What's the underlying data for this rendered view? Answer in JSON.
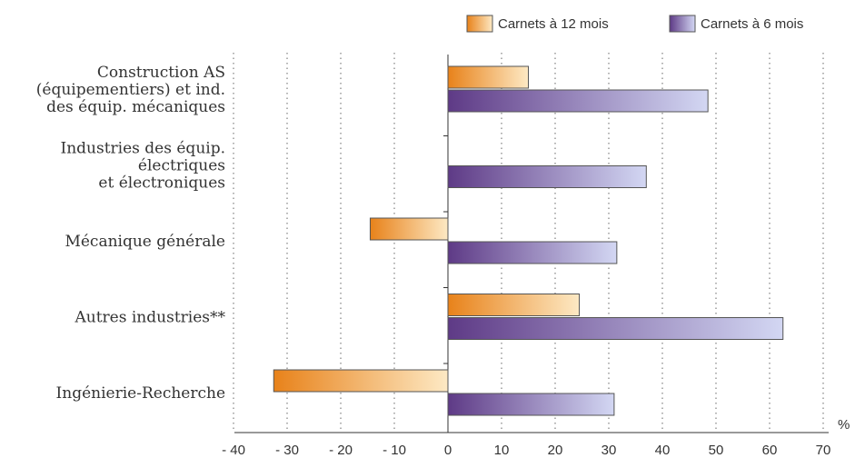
{
  "chart_data": {
    "type": "bar",
    "orientation": "horizontal",
    "title": "",
    "xlabel": "",
    "ylabel": "",
    "unit_label": "%",
    "categories": [
      [
        "Construction AS",
        "(équipementiers) et ind.",
        "des équip. mécaniques"
      ],
      [
        "Industries des équip.",
        "électriques",
        "et électroniques"
      ],
      [
        "Mécanique générale"
      ],
      [
        "Autres industries**"
      ],
      [
        "Ingénierie-Recherche"
      ]
    ],
    "series": [
      {
        "name": "Carnets à 12 mois",
        "values": [
          15,
          null,
          -14.5,
          24.5,
          -32.5
        ],
        "color_start": "#e8821a",
        "color_end": "#fde9c4"
      },
      {
        "name": "Carnets à 6 mois",
        "values": [
          48.5,
          37,
          31.5,
          62.5,
          31
        ],
        "color_start": "#5e3a86",
        "color_end": "#d3d7f3"
      }
    ],
    "xlim": [
      -40,
      70
    ],
    "xticks": [
      -40,
      -30,
      -20,
      -10,
      0,
      10,
      20,
      30,
      40,
      50,
      60,
      70
    ],
    "xtick_labels": [
      "- 40",
      "- 30",
      "- 20",
      "- 10",
      "0",
      "10",
      "20",
      "30",
      "40",
      "50",
      "60",
      "70"
    ],
    "grid": "vertical-dotted",
    "legend_position": "top-right"
  }
}
